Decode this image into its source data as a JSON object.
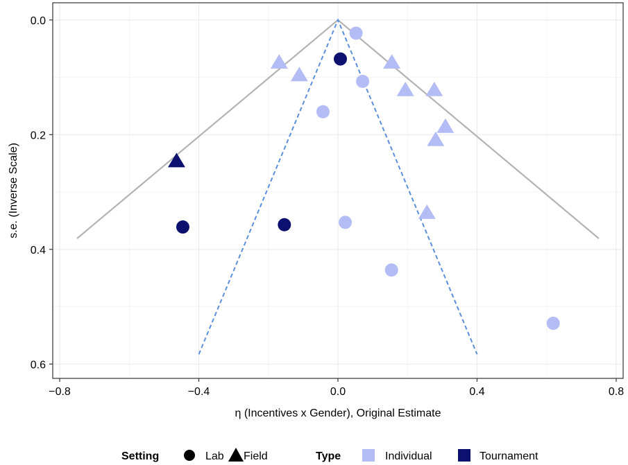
{
  "chart_data": {
    "type": "scatter",
    "xlabel": "η (Incentives x Gender), Original Estimate",
    "ylabel": "s.e. (Inverse Scale)",
    "xlim": [
      -0.82,
      0.82
    ],
    "ylim": [
      0.625,
      -0.03
    ],
    "y_reversed": true,
    "x_ticks": [
      -0.8,
      -0.4,
      0.0,
      0.4,
      0.8
    ],
    "x_tick_labels": [
      "−0.8",
      "−0.4",
      "0.0",
      "0.4",
      "0.8"
    ],
    "y_ticks": [
      0.0,
      0.2,
      0.4,
      0.6
    ],
    "y_tick_labels": [
      "0.0",
      "0.2",
      "0.4",
      "0.6"
    ],
    "grid": true,
    "colors": {
      "Individual": "#b3bcf5",
      "Tournament": "#0c1170",
      "funnel_solid": "#b3b3b3",
      "funnel_dashed": "#5b8fdc"
    },
    "funnel_solid": [
      [
        -0.75,
        0.381
      ],
      [
        0.0,
        0.0
      ],
      [
        0.75,
        0.381
      ]
    ],
    "funnel_dashed": [
      [
        -0.4,
        0.583
      ],
      [
        0.0,
        0.0
      ],
      [
        0.4,
        0.583
      ]
    ],
    "points": [
      {
        "x": 0.052,
        "y": 0.023,
        "setting": "Lab",
        "type": "Individual"
      },
      {
        "x": 0.007,
        "y": 0.068,
        "setting": "Lab",
        "type": "Tournament"
      },
      {
        "x": 0.071,
        "y": 0.107,
        "setting": "Lab",
        "type": "Individual"
      },
      {
        "x": -0.043,
        "y": 0.16,
        "setting": "Lab",
        "type": "Individual"
      },
      {
        "x": -0.446,
        "y": 0.361,
        "setting": "Lab",
        "type": "Tournament"
      },
      {
        "x": -0.154,
        "y": 0.357,
        "setting": "Lab",
        "type": "Tournament"
      },
      {
        "x": 0.021,
        "y": 0.353,
        "setting": "Lab",
        "type": "Individual"
      },
      {
        "x": 0.154,
        "y": 0.436,
        "setting": "Lab",
        "type": "Individual"
      },
      {
        "x": 0.619,
        "y": 0.529,
        "setting": "Lab",
        "type": "Individual"
      },
      {
        "x": -0.169,
        "y": 0.074,
        "setting": "Field",
        "type": "Individual"
      },
      {
        "x": -0.111,
        "y": 0.096,
        "setting": "Field",
        "type": "Individual"
      },
      {
        "x": 0.155,
        "y": 0.074,
        "setting": "Field",
        "type": "Individual"
      },
      {
        "x": 0.194,
        "y": 0.122,
        "setting": "Field",
        "type": "Individual"
      },
      {
        "x": 0.277,
        "y": 0.122,
        "setting": "Field",
        "type": "Individual"
      },
      {
        "x": 0.309,
        "y": 0.186,
        "setting": "Field",
        "type": "Individual"
      },
      {
        "x": 0.281,
        "y": 0.209,
        "setting": "Field",
        "type": "Individual"
      },
      {
        "x": -0.464,
        "y": 0.246,
        "setting": "Field",
        "type": "Tournament"
      },
      {
        "x": 0.256,
        "y": 0.336,
        "setting": "Field",
        "type": "Individual"
      }
    ],
    "legend": {
      "position": "bottom",
      "setting_title": "Setting",
      "setting_entries": [
        {
          "label": "Lab",
          "shape": "circle"
        },
        {
          "label": "Field",
          "shape": "triangle"
        }
      ],
      "type_title": "Type",
      "type_entries": [
        {
          "label": "Individual"
        },
        {
          "label": "Tournament"
        }
      ]
    }
  }
}
